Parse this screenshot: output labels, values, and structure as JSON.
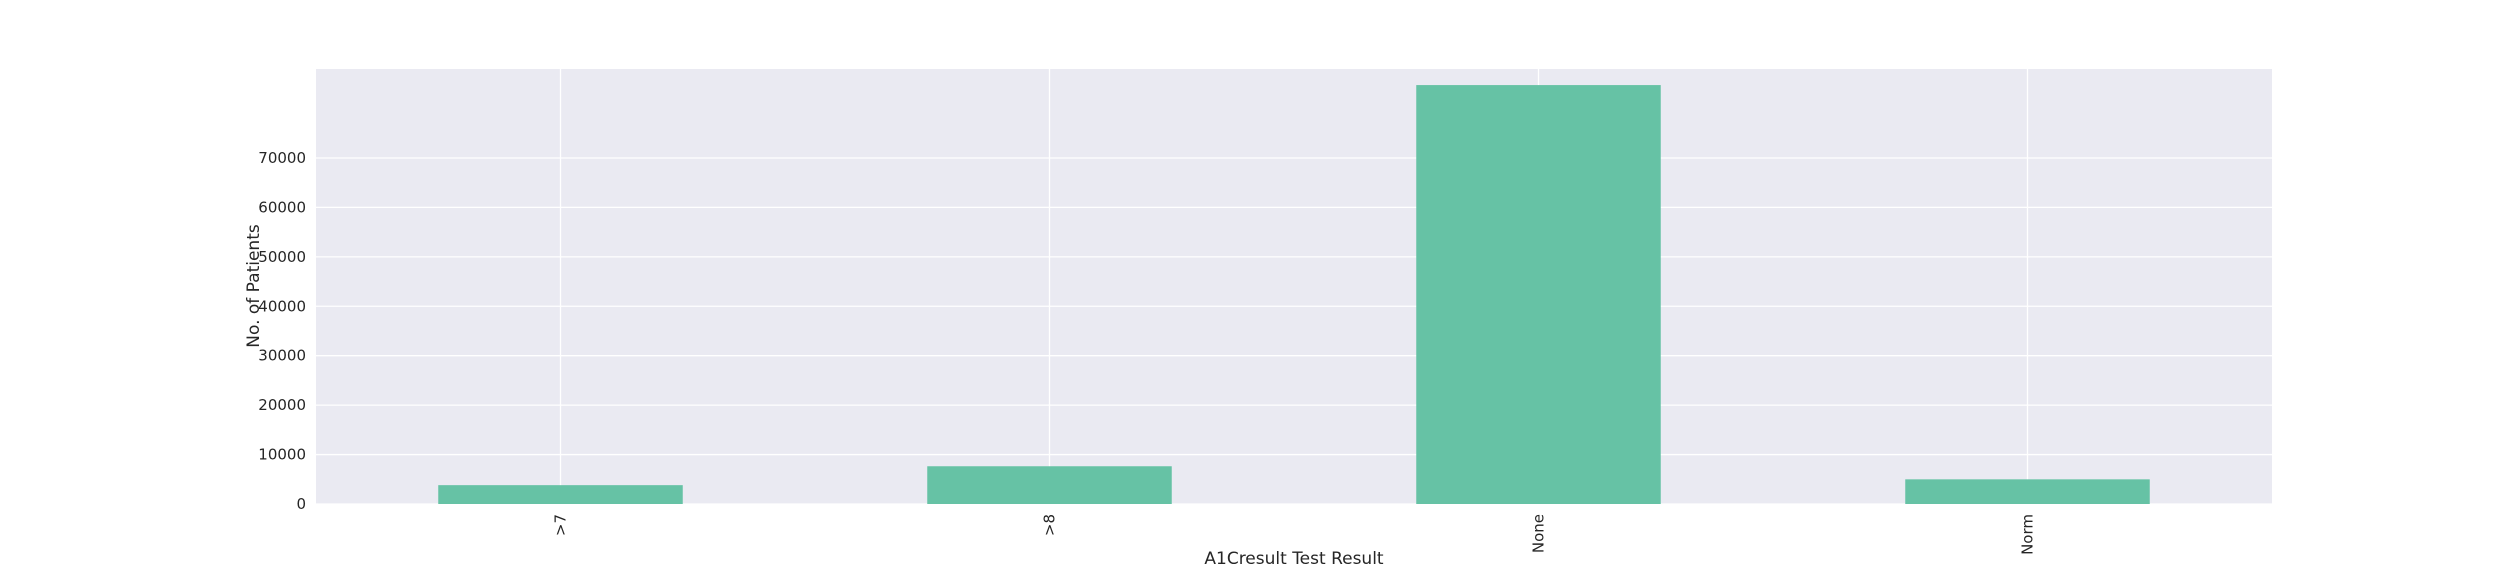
{
  "chart_data": {
    "type": "bar",
    "title": "",
    "xlabel": "A1Cresult Test Result",
    "ylabel": "No. of Patients",
    "categories": [
      ">7",
      ">8",
      "None",
      "Norm"
    ],
    "values": [
      3812,
      7636,
      84748,
      4990
    ],
    "ylim": [
      0,
      88000
    ],
    "yticks": [
      0,
      10000,
      20000,
      30000,
      40000,
      50000,
      60000,
      70000
    ],
    "ytick_labels": [
      "0",
      "10000",
      "20000",
      "30000",
      "40000",
      "50000",
      "60000",
      "70000"
    ],
    "grid": true,
    "legend": "none",
    "colors": {
      "bar": "#66c2a5",
      "plot_background": "#eaeaf2",
      "grid": "#ffffff",
      "text": "#262626"
    }
  }
}
